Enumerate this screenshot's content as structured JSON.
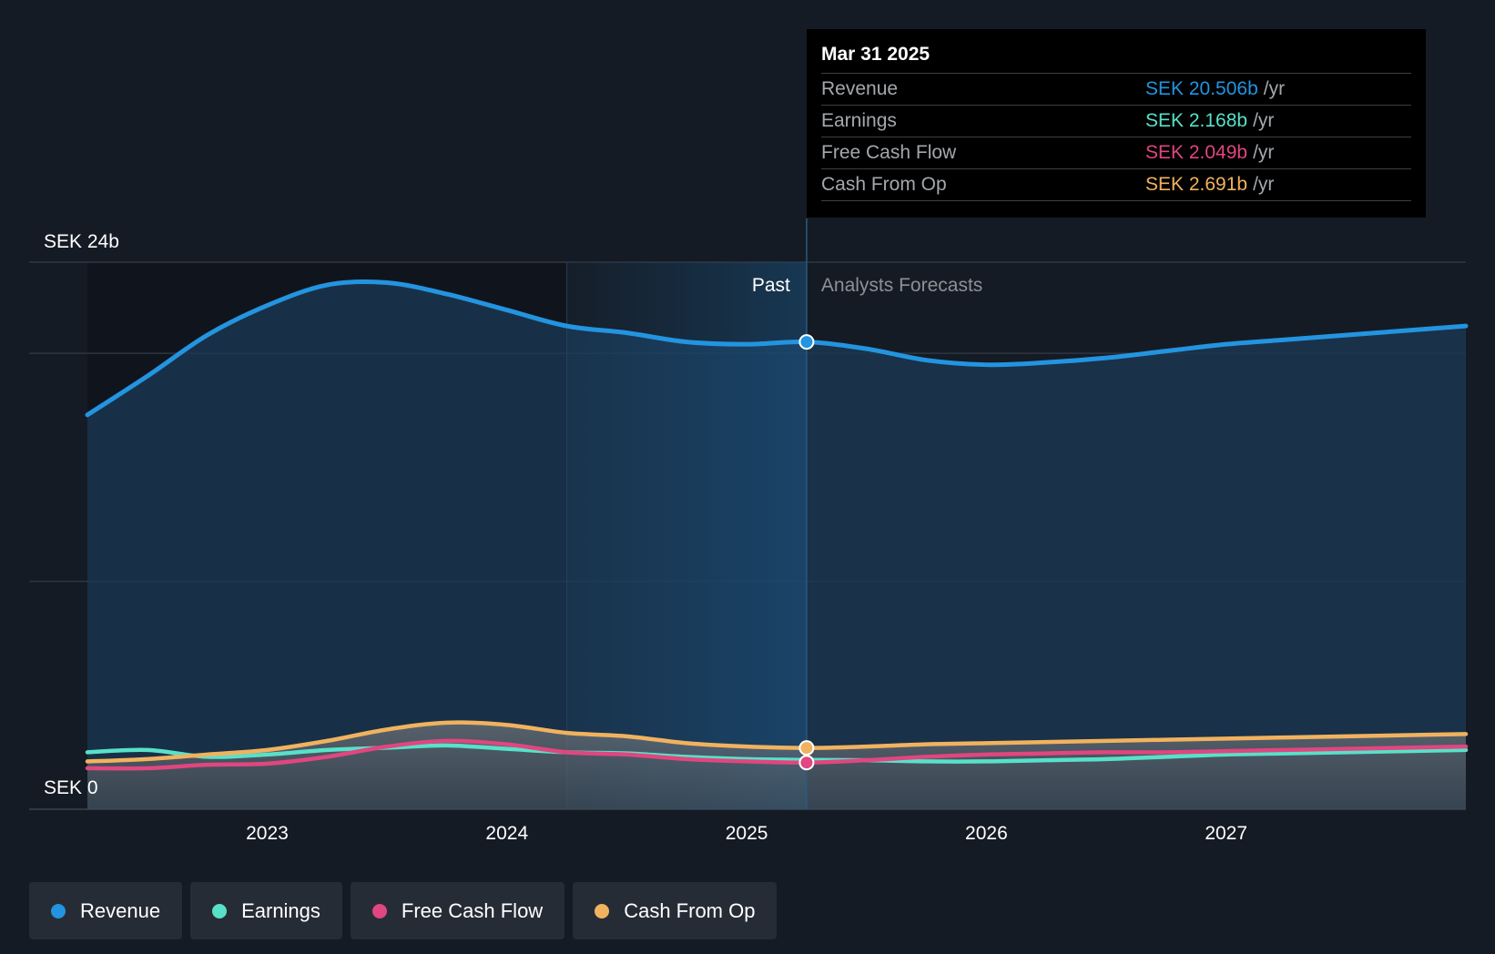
{
  "colors": {
    "revenue": "#2394e0",
    "earnings": "#58e1c9",
    "fcf": "#e0467f",
    "cfo": "#f1b25f",
    "background": "#151b24",
    "grid": "#2e3642"
  },
  "tooltip": {
    "date": "Mar 31 2025",
    "rows": [
      {
        "label": "Revenue",
        "value": "SEK 20.506b",
        "unit": "/yr"
      },
      {
        "label": "Earnings",
        "value": "SEK 2.168b",
        "unit": "/yr"
      },
      {
        "label": "Free Cash Flow",
        "value": "SEK 2.049b",
        "unit": "/yr"
      },
      {
        "label": "Cash From Op",
        "value": "SEK 2.691b",
        "unit": "/yr"
      }
    ]
  },
  "legend": [
    {
      "label": "Revenue",
      "color": "#2394e0"
    },
    {
      "label": "Earnings",
      "color": "#58e1c9"
    },
    {
      "label": "Free Cash Flow",
      "color": "#e0467f"
    },
    {
      "label": "Cash From Op",
      "color": "#f1b25f"
    }
  ],
  "chart_data": {
    "type": "line",
    "y_top_label": "SEK 24b",
    "y_bottom_label": "SEK 0",
    "past_label": "Past",
    "forecast_label": "Analysts Forecasts",
    "x_ticks": [
      "2023",
      "2024",
      "2025",
      "2026",
      "2027"
    ],
    "xlim": [
      2022.25,
      2028.0
    ],
    "ylim": [
      0,
      24
    ],
    "divider_x": 2025.25,
    "highlight_start_x": 2024.25,
    "series": [
      {
        "name": "Revenue",
        "points": [
          [
            2022.25,
            17.3
          ],
          [
            2022.5,
            19.0
          ],
          [
            2022.75,
            20.8
          ],
          [
            2023.0,
            22.1
          ],
          [
            2023.25,
            23.0
          ],
          [
            2023.5,
            23.1
          ],
          [
            2023.75,
            22.6
          ],
          [
            2024.0,
            21.9
          ],
          [
            2024.25,
            21.2
          ],
          [
            2024.5,
            20.9
          ],
          [
            2024.75,
            20.5
          ],
          [
            2025.0,
            20.4
          ],
          [
            2025.25,
            20.5
          ],
          [
            2025.5,
            20.2
          ],
          [
            2025.75,
            19.7
          ],
          [
            2026.0,
            19.5
          ],
          [
            2026.25,
            19.6
          ],
          [
            2026.5,
            19.8
          ],
          [
            2026.75,
            20.1
          ],
          [
            2027.0,
            20.4
          ],
          [
            2027.25,
            20.6
          ],
          [
            2027.5,
            20.8
          ],
          [
            2027.75,
            21.0
          ],
          [
            2028.0,
            21.2
          ]
        ]
      },
      {
        "name": "Earnings",
        "points": [
          [
            2022.25,
            2.5
          ],
          [
            2022.5,
            2.6
          ],
          [
            2022.75,
            2.3
          ],
          [
            2023.0,
            2.4
          ],
          [
            2023.25,
            2.6
          ],
          [
            2023.5,
            2.7
          ],
          [
            2023.75,
            2.8
          ],
          [
            2024.0,
            2.65
          ],
          [
            2024.25,
            2.5
          ],
          [
            2024.5,
            2.45
          ],
          [
            2024.75,
            2.3
          ],
          [
            2025.0,
            2.2
          ],
          [
            2025.25,
            2.168
          ],
          [
            2025.5,
            2.15
          ],
          [
            2025.75,
            2.1
          ],
          [
            2026.0,
            2.1
          ],
          [
            2026.25,
            2.15
          ],
          [
            2026.5,
            2.2
          ],
          [
            2026.75,
            2.3
          ],
          [
            2027.0,
            2.4
          ],
          [
            2027.25,
            2.45
          ],
          [
            2027.5,
            2.5
          ],
          [
            2027.75,
            2.55
          ],
          [
            2028.0,
            2.6
          ]
        ]
      },
      {
        "name": "Free Cash Flow",
        "points": [
          [
            2022.25,
            1.8
          ],
          [
            2022.5,
            1.8
          ],
          [
            2022.75,
            1.95
          ],
          [
            2023.0,
            2.0
          ],
          [
            2023.25,
            2.3
          ],
          [
            2023.5,
            2.75
          ],
          [
            2023.75,
            3.0
          ],
          [
            2024.0,
            2.85
          ],
          [
            2024.25,
            2.5
          ],
          [
            2024.5,
            2.4
          ],
          [
            2024.75,
            2.2
          ],
          [
            2025.0,
            2.1
          ],
          [
            2025.25,
            2.049
          ],
          [
            2025.5,
            2.15
          ],
          [
            2025.75,
            2.3
          ],
          [
            2026.0,
            2.4
          ],
          [
            2026.25,
            2.45
          ],
          [
            2026.5,
            2.5
          ],
          [
            2026.75,
            2.5
          ],
          [
            2027.0,
            2.55
          ],
          [
            2027.25,
            2.6
          ],
          [
            2027.5,
            2.65
          ],
          [
            2027.75,
            2.7
          ],
          [
            2028.0,
            2.75
          ]
        ]
      },
      {
        "name": "Cash From Op",
        "points": [
          [
            2022.25,
            2.1
          ],
          [
            2022.5,
            2.2
          ],
          [
            2022.75,
            2.4
          ],
          [
            2023.0,
            2.6
          ],
          [
            2023.25,
            3.0
          ],
          [
            2023.5,
            3.5
          ],
          [
            2023.75,
            3.8
          ],
          [
            2024.0,
            3.7
          ],
          [
            2024.25,
            3.35
          ],
          [
            2024.5,
            3.2
          ],
          [
            2024.75,
            2.9
          ],
          [
            2025.0,
            2.75
          ],
          [
            2025.25,
            2.691
          ],
          [
            2025.5,
            2.75
          ],
          [
            2025.75,
            2.85
          ],
          [
            2026.0,
            2.9
          ],
          [
            2026.25,
            2.95
          ],
          [
            2026.5,
            3.0
          ],
          [
            2026.75,
            3.05
          ],
          [
            2027.0,
            3.1
          ],
          [
            2027.25,
            3.15
          ],
          [
            2027.5,
            3.2
          ],
          [
            2027.75,
            3.25
          ],
          [
            2028.0,
            3.3
          ]
        ]
      }
    ],
    "markers_at_x": 2025.25
  }
}
